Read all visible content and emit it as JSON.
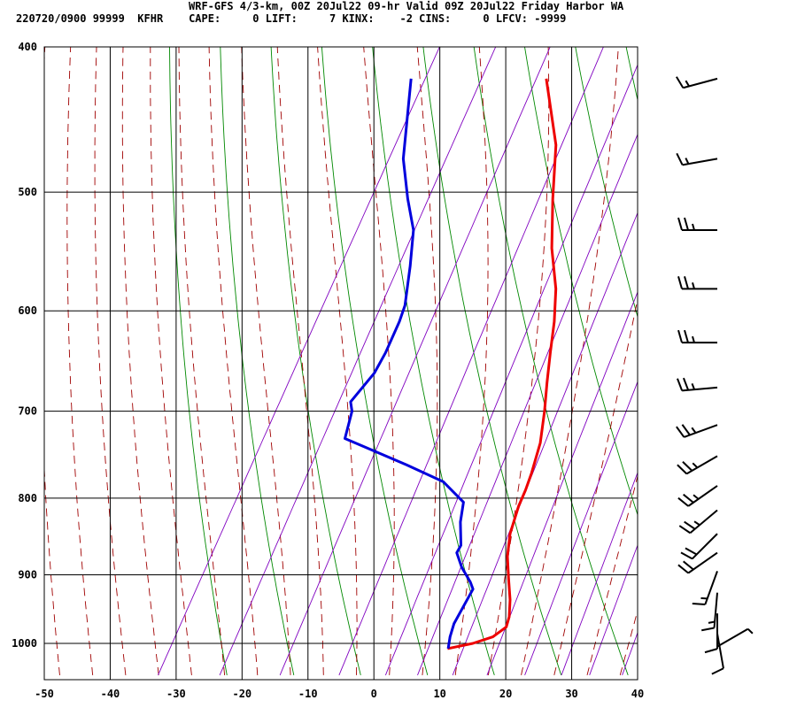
{
  "header": {
    "title_line": "WRF-GFS 4/3-km, 00Z 20Jul22 09-hr Valid 09Z 20Jul22 Friday Harbor WA",
    "info_line": "220720/0900 99999  KFHR    CAPE:     0 LIFT:     7 KINX:    -2 CINS:     0 LFCV: -9999"
  },
  "chart_data": {
    "type": "line",
    "x_ticks": [
      -50,
      -40,
      -30,
      -20,
      -10,
      0,
      10,
      20,
      30,
      40
    ],
    "y_ticks": [
      400,
      500,
      600,
      700,
      800,
      900,
      1000
    ],
    "xlim": [
      -50,
      40
    ],
    "ylim_hpa": [
      1040,
      400
    ],
    "grid": true,
    "series": [
      {
        "color": "#ee0000",
        "points": [
          [
            11.6,
            1008
          ],
          [
            15,
            1000
          ],
          [
            17.5,
            990
          ],
          [
            18.7,
            975
          ],
          [
            18.3,
            960
          ],
          [
            17,
            935
          ],
          [
            15,
            905
          ],
          [
            13,
            875
          ],
          [
            11.5,
            845
          ],
          [
            10.5,
            810
          ],
          [
            10.2,
            790
          ],
          [
            9.7,
            770
          ],
          [
            8.5,
            735
          ],
          [
            6.5,
            700
          ],
          [
            4.5,
            670
          ],
          [
            2.5,
            640
          ],
          [
            0.5,
            610
          ],
          [
            -2,
            580
          ],
          [
            -6,
            545
          ],
          [
            -10,
            505
          ],
          [
            -14,
            465
          ],
          [
            -21,
            420
          ]
        ]
      },
      {
        "color": "#0000dd",
        "points": [
          [
            11.7,
            1008
          ],
          [
            11,
            990
          ],
          [
            10.5,
            970
          ],
          [
            10.5,
            950
          ],
          [
            10.5,
            920
          ],
          [
            9.5,
            910
          ],
          [
            7,
            890
          ],
          [
            5,
            870
          ],
          [
            5,
            860
          ],
          [
            3,
            830
          ],
          [
            1.8,
            805
          ],
          [
            -3,
            780
          ],
          [
            -10,
            760
          ],
          [
            -21.5,
            730
          ],
          [
            -22.7,
            700
          ],
          [
            -23.7,
            690
          ],
          [
            -22.5,
            660
          ],
          [
            -22.5,
            640
          ],
          [
            -23,
            610
          ],
          [
            -23.5,
            595
          ],
          [
            -26,
            560
          ],
          [
            -28.5,
            530
          ],
          [
            -32,
            505
          ],
          [
            -36,
            475
          ],
          [
            -41.5,
            420
          ]
        ]
      }
    ],
    "wind_barbs": [
      {
        "p": 420,
        "dir_deg": 255,
        "speed_kt": 15
      },
      {
        "p": 475,
        "dir_deg": 260,
        "speed_kt": 15
      },
      {
        "p": 530,
        "dir_deg": 270,
        "speed_kt": 25
      },
      {
        "p": 580,
        "dir_deg": 270,
        "speed_kt": 25
      },
      {
        "p": 630,
        "dir_deg": 270,
        "speed_kt": 25
      },
      {
        "p": 675,
        "dir_deg": 265,
        "speed_kt": 25
      },
      {
        "p": 715,
        "dir_deg": 250,
        "speed_kt": 25
      },
      {
        "p": 750,
        "dir_deg": 240,
        "speed_kt": 25
      },
      {
        "p": 785,
        "dir_deg": 235,
        "speed_kt": 25
      },
      {
        "p": 815,
        "dir_deg": 230,
        "speed_kt": 25
      },
      {
        "p": 845,
        "dir_deg": 225,
        "speed_kt": 20
      },
      {
        "p": 870,
        "dir_deg": 235,
        "speed_kt": 20
      },
      {
        "p": 895,
        "dir_deg": 200,
        "speed_kt": 15
      },
      {
        "p": 925,
        "dir_deg": 185,
        "speed_kt": 15
      },
      {
        "p": 955,
        "dir_deg": 180,
        "speed_kt": 10
      },
      {
        "p": 985,
        "dir_deg": 170,
        "speed_kt": 10
      },
      {
        "p": 1005,
        "dir_deg": 60,
        "speed_kt": 5
      }
    ]
  }
}
